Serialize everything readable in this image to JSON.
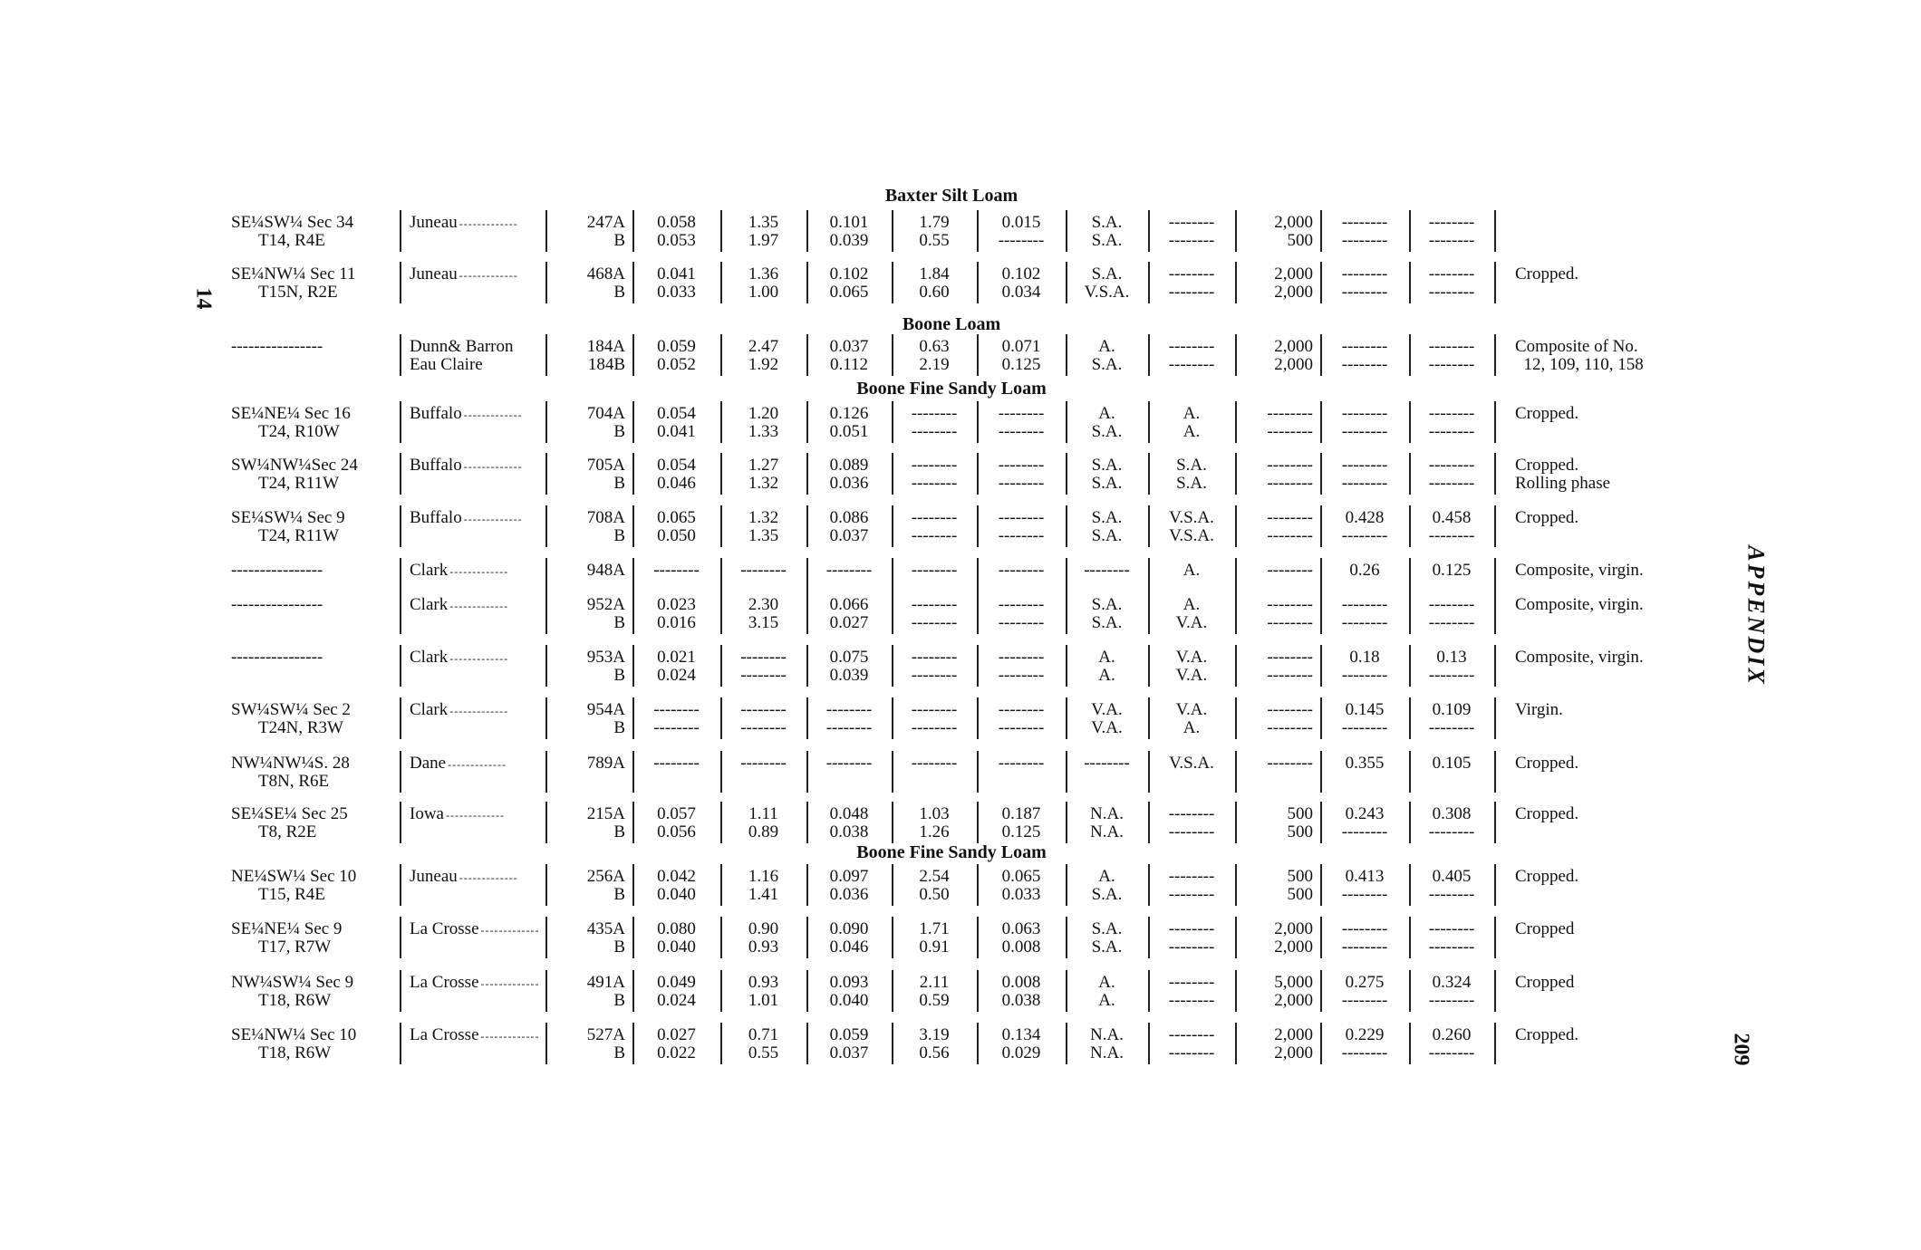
{
  "margin": {
    "left_page_number": "14",
    "running_head": "APPENDIX",
    "page_number": "209"
  },
  "sections": [
    {
      "title": "Baxter Silt Loam"
    },
    {
      "title": "Boone Loam"
    },
    {
      "title": "Boone Fine Sandy Loam"
    },
    {
      "title": "Boone Fine Sandy Loam"
    }
  ],
  "records": [
    {
      "loc": [
        "SE¼SW¼ Sec 34",
        "T14, R4E"
      ],
      "county": [
        "Juneau"
      ],
      "sample": [
        "247A",
        "B"
      ],
      "cols": [
        [
          "0.058",
          "0.053"
        ],
        [
          "1.35",
          "1.97"
        ],
        [
          "0.101",
          "0.039"
        ],
        [
          "1.79",
          "0.55"
        ],
        [
          "0.015",
          "--------"
        ],
        [
          "S.A.",
          "S.A."
        ],
        [
          "--------",
          "--------"
        ],
        [
          "2,000",
          "500"
        ],
        [
          "--------",
          "--------"
        ],
        [
          "--------",
          "--------"
        ]
      ],
      "remarks": []
    },
    {
      "loc": [
        "SE¼NW¼ Sec 11",
        "T15N, R2E"
      ],
      "county": [
        "Juneau"
      ],
      "sample": [
        "468A",
        "B"
      ],
      "cols": [
        [
          "0.041",
          "0.033"
        ],
        [
          "1.36",
          "1.00"
        ],
        [
          "0.102",
          "0.065"
        ],
        [
          "1.84",
          "0.60"
        ],
        [
          "0.102",
          "0.034"
        ],
        [
          "S.A.",
          "V.S.A."
        ],
        [
          "--------",
          "--------"
        ],
        [
          "2,000",
          "2,000"
        ],
        [
          "--------",
          "--------"
        ],
        [
          "--------",
          "--------"
        ]
      ],
      "remarks": [
        "Cropped."
      ]
    },
    {
      "loc": [
        "----------------",
        ""
      ],
      "county": [
        "Dunn& Barron",
        "Eau Claire"
      ],
      "sample": [
        "184A",
        "184B"
      ],
      "cols": [
        [
          "0.059",
          "0.052"
        ],
        [
          "2.47",
          "1.92"
        ],
        [
          "0.037",
          "0.112"
        ],
        [
          "0.63",
          "2.19"
        ],
        [
          "0.071",
          "0.125"
        ],
        [
          "A.",
          "S.A."
        ],
        [
          "--------",
          "--------"
        ],
        [
          "2,000",
          "2,000"
        ],
        [
          "--------",
          "--------"
        ],
        [
          "--------",
          "--------"
        ]
      ],
      "remarks": [
        "Composite of No.",
        "  12, 109, 110, 158"
      ]
    },
    {
      "loc": [
        "SE¼NE¼ Sec 16",
        "T24, R10W"
      ],
      "county": [
        "Buffalo"
      ],
      "sample": [
        "704A",
        "B"
      ],
      "cols": [
        [
          "0.054",
          "0.041"
        ],
        [
          "1.20",
          "1.33"
        ],
        [
          "0.126",
          "0.051"
        ],
        [
          "--------",
          "--------"
        ],
        [
          "--------",
          "--------"
        ],
        [
          "A.",
          "S.A."
        ],
        [
          "A.",
          "A."
        ],
        [
          "--------",
          "--------"
        ],
        [
          "--------",
          "--------"
        ],
        [
          "--------",
          "--------"
        ]
      ],
      "remarks": [
        "Cropped."
      ]
    },
    {
      "loc": [
        "SW¼NW¼Sec 24",
        "T24, R11W"
      ],
      "county": [
        "Buffalo"
      ],
      "sample": [
        "705A",
        "B"
      ],
      "cols": [
        [
          "0.054",
          "0.046"
        ],
        [
          "1.27",
          "1.32"
        ],
        [
          "0.089",
          "0.036"
        ],
        [
          "--------",
          "--------"
        ],
        [
          "--------",
          "--------"
        ],
        [
          "S.A.",
          "S.A."
        ],
        [
          "S.A.",
          "S.A."
        ],
        [
          "--------",
          "--------"
        ],
        [
          "--------",
          "--------"
        ],
        [
          "--------",
          "--------"
        ]
      ],
      "remarks": [
        "Cropped.",
        "Rolling phase"
      ]
    },
    {
      "loc": [
        "SE¼SW¼ Sec 9",
        "T24, R11W"
      ],
      "county": [
        "Buffalo"
      ],
      "sample": [
        "708A",
        "B"
      ],
      "cols": [
        [
          "0.065",
          "0.050"
        ],
        [
          "1.32",
          "1.35"
        ],
        [
          "0.086",
          "0.037"
        ],
        [
          "--------",
          "--------"
        ],
        [
          "--------",
          "--------"
        ],
        [
          "S.A.",
          "S.A."
        ],
        [
          "V.S.A.",
          "V.S.A."
        ],
        [
          "--------",
          "--------"
        ],
        [
          "0.428",
          "--------"
        ],
        [
          "0.458",
          "--------"
        ]
      ],
      "remarks": [
        "Cropped."
      ]
    },
    {
      "loc": [
        "----------------"
      ],
      "county": [
        "Clark"
      ],
      "sample": [
        "948A"
      ],
      "cols": [
        [
          "--------"
        ],
        [
          "--------"
        ],
        [
          "--------"
        ],
        [
          "--------"
        ],
        [
          "--------"
        ],
        [
          "--------"
        ],
        [
          "A."
        ],
        [
          "--------"
        ],
        [
          "0.26"
        ],
        [
          "0.125"
        ]
      ],
      "remarks": [
        "Composite, virgin."
      ]
    },
    {
      "loc": [
        "----------------"
      ],
      "county": [
        "Clark"
      ],
      "sample": [
        "952A",
        "B"
      ],
      "cols": [
        [
          "0.023",
          "0.016"
        ],
        [
          "2.30",
          "3.15"
        ],
        [
          "0.066",
          "0.027"
        ],
        [
          "--------",
          "--------"
        ],
        [
          "--------",
          "--------"
        ],
        [
          "S.A.",
          "S.A."
        ],
        [
          "A.",
          "V.A."
        ],
        [
          "--------",
          "--------"
        ],
        [
          "--------",
          "--------"
        ],
        [
          "--------",
          "--------"
        ]
      ],
      "remarks": [
        "Composite, virgin."
      ]
    },
    {
      "loc": [
        "----------------"
      ],
      "county": [
        "Clark"
      ],
      "sample": [
        "953A",
        "B"
      ],
      "cols": [
        [
          "0.021",
          "0.024"
        ],
        [
          "--------",
          "--------"
        ],
        [
          "0.075",
          "0.039"
        ],
        [
          "--------",
          "--------"
        ],
        [
          "--------",
          "--------"
        ],
        [
          "A.",
          "A."
        ],
        [
          "V.A.",
          "V.A."
        ],
        [
          "--------",
          "--------"
        ],
        [
          "0.18",
          "--------"
        ],
        [
          "0.13",
          "--------"
        ]
      ],
      "remarks": [
        "Composite, virgin."
      ]
    },
    {
      "loc": [
        "SW¼SW¼ Sec 2",
        "T24N, R3W"
      ],
      "county": [
        "Clark"
      ],
      "sample": [
        "954A",
        "B"
      ],
      "cols": [
        [
          "--------",
          "--------"
        ],
        [
          "--------",
          "--------"
        ],
        [
          "--------",
          "--------"
        ],
        [
          "--------",
          "--------"
        ],
        [
          "--------",
          "--------"
        ],
        [
          "V.A.",
          "V.A."
        ],
        [
          "V.A.",
          "A."
        ],
        [
          "--------",
          "--------"
        ],
        [
          "0.145",
          "--------"
        ],
        [
          "0.109",
          "--------"
        ]
      ],
      "remarks": [
        "Virgin."
      ]
    },
    {
      "loc": [
        "NW¼NW¼S. 28",
        "T8N, R6E"
      ],
      "county": [
        "Dane"
      ],
      "sample": [
        "789A"
      ],
      "cols": [
        [
          "--------"
        ],
        [
          "--------"
        ],
        [
          "--------"
        ],
        [
          "--------"
        ],
        [
          "--------"
        ],
        [
          "--------"
        ],
        [
          "V.S.A."
        ],
        [
          "--------"
        ],
        [
          "0.355"
        ],
        [
          "0.105"
        ]
      ],
      "remarks": [
        "Cropped."
      ]
    },
    {
      "loc": [
        "SE¼SE¼ Sec 25",
        "T8, R2E"
      ],
      "county": [
        "Iowa"
      ],
      "sample": [
        "215A",
        "B"
      ],
      "cols": [
        [
          "0.057",
          "0.056"
        ],
        [
          "1.11",
          "0.89"
        ],
        [
          "0.048",
          "0.038"
        ],
        [
          "1.03",
          "1.26"
        ],
        [
          "0.187",
          "0.125"
        ],
        [
          "N.A.",
          "N.A."
        ],
        [
          "--------",
          "--------"
        ],
        [
          "500",
          "500"
        ],
        [
          "0.243",
          "--------"
        ],
        [
          "0.308",
          "--------"
        ]
      ],
      "remarks": [
        "Cropped."
      ]
    },
    {
      "loc": [
        "NE¼SW¼ Sec 10",
        "T15, R4E"
      ],
      "county": [
        "Juneau"
      ],
      "sample": [
        "256A",
        "B"
      ],
      "cols": [
        [
          "0.042",
          "0.040"
        ],
        [
          "1.16",
          "1.41"
        ],
        [
          "0.097",
          "0.036"
        ],
        [
          "2.54",
          "0.50"
        ],
        [
          "0.065",
          "0.033"
        ],
        [
          "A.",
          "S.A."
        ],
        [
          "--------",
          "--------"
        ],
        [
          "500",
          "500"
        ],
        [
          "0.413",
          "--------"
        ],
        [
          "0.405",
          "--------"
        ]
      ],
      "remarks": [
        "Cropped."
      ]
    },
    {
      "loc": [
        "SE¼NE¼ Sec 9",
        "T17, R7W"
      ],
      "county": [
        "La Crosse"
      ],
      "sample": [
        "435A",
        "B"
      ],
      "cols": [
        [
          "0.080",
          "0.040"
        ],
        [
          "0.90",
          "0.93"
        ],
        [
          "0.090",
          "0.046"
        ],
        [
          "1.71",
          "0.91"
        ],
        [
          "0.063",
          "0.008"
        ],
        [
          "S.A.",
          "S.A."
        ],
        [
          "--------",
          "--------"
        ],
        [
          "2,000",
          "2,000"
        ],
        [
          "--------",
          "--------"
        ],
        [
          "--------",
          "--------"
        ]
      ],
      "remarks": [
        "Cropped"
      ]
    },
    {
      "loc": [
        "NW¼SW¼ Sec 9",
        "T18, R6W"
      ],
      "county": [
        "La Crosse"
      ],
      "sample": [
        "491A",
        "B"
      ],
      "cols": [
        [
          "0.049",
          "0.024"
        ],
        [
          "0.93",
          "1.01"
        ],
        [
          "0.093",
          "0.040"
        ],
        [
          "2.11",
          "0.59"
        ],
        [
          "0.008",
          "0.038"
        ],
        [
          "A.",
          "A."
        ],
        [
          "--------",
          "--------"
        ],
        [
          "5,000",
          "2,000"
        ],
        [
          "0.275",
          "--------"
        ],
        [
          "0.324",
          "--------"
        ]
      ],
      "remarks": [
        "Cropped"
      ]
    },
    {
      "loc": [
        "SE¼NW¼ Sec 10",
        "T18, R6W"
      ],
      "county": [
        "La Crosse"
      ],
      "sample": [
        "527A",
        "B"
      ],
      "cols": [
        [
          "0.027",
          "0.022"
        ],
        [
          "0.71",
          "0.55"
        ],
        [
          "0.059",
          "0.037"
        ],
        [
          "3.19",
          "0.56"
        ],
        [
          "0.134",
          "0.029"
        ],
        [
          "N.A.",
          "N.A."
        ],
        [
          "--------",
          "--------"
        ],
        [
          "2,000",
          "2,000"
        ],
        [
          "0.229",
          "--------"
        ],
        [
          "0.260",
          "--------"
        ]
      ],
      "remarks": [
        "Cropped."
      ]
    }
  ]
}
